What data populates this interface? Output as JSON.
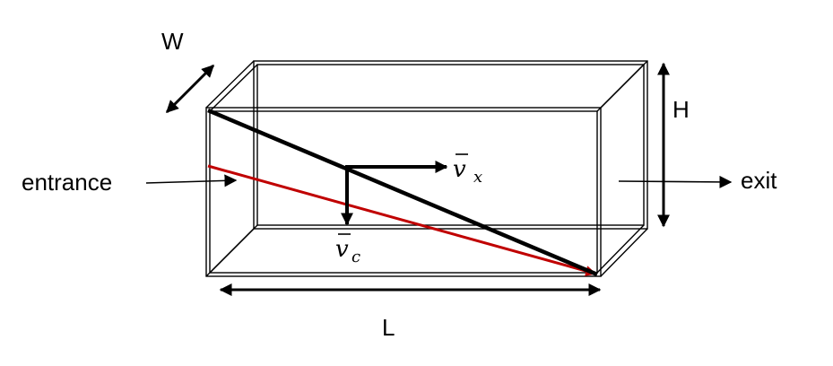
{
  "labels": {
    "width": "W",
    "height": "H",
    "length": "L",
    "entrance": "entrance",
    "exit": "exit"
  },
  "vectors": {
    "vx": {
      "symbol": "v",
      "subscript": "x"
    },
    "vc": {
      "symbol": "v",
      "subscript": "c"
    }
  },
  "colors": {
    "outline": "#000000",
    "trajectory_fast": "#000000",
    "trajectory_slow": "#c00000"
  }
}
